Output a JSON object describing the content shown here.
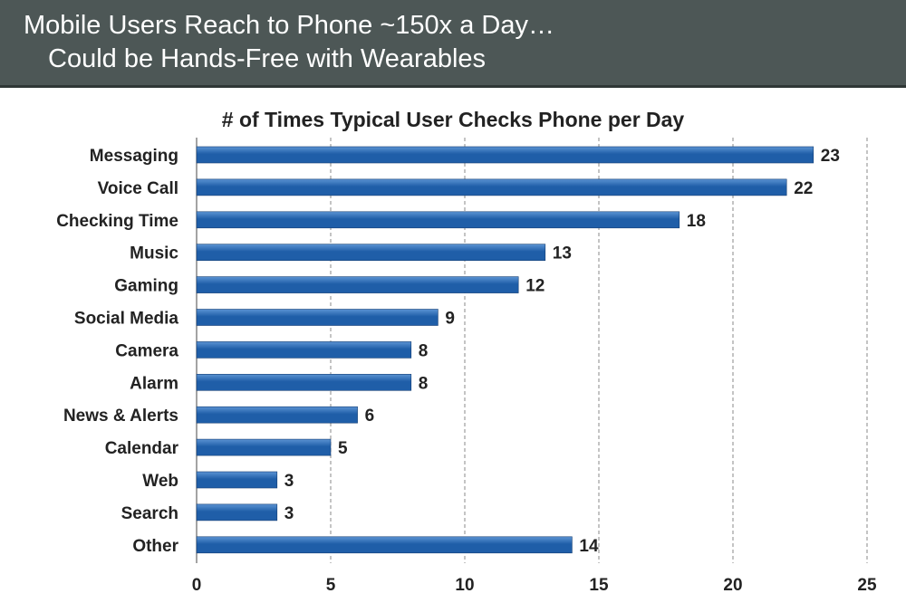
{
  "slide": {
    "title_line1": "Mobile Users Reach to Phone ~150x a Day…",
    "title_line2": "Could be Hands-Free with Wearables"
  },
  "colors": {
    "header_bg": "#4d5756",
    "bar_fill": "#1f5ea8",
    "bar_highlight": "#5b93d3",
    "text": "#222222"
  },
  "chart_data": {
    "type": "bar",
    "orientation": "horizontal",
    "title": "# of Times Typical User Checks Phone per Day",
    "categories": [
      "Messaging",
      "Voice Call",
      "Checking Time",
      "Music",
      "Gaming",
      "Social Media",
      "Camera",
      "Alarm",
      "News & Alerts",
      "Calendar",
      "Web",
      "Search",
      "Other"
    ],
    "values": [
      23,
      22,
      18,
      13,
      12,
      9,
      8,
      8,
      6,
      5,
      3,
      3,
      14
    ],
    "xlabel": "",
    "ylabel": "",
    "xlim": [
      0,
      25
    ],
    "xticks": [
      0,
      5,
      10,
      15,
      20,
      25
    ],
    "grid": "vertical dashed",
    "data_labels": true,
    "legend": "none"
  }
}
